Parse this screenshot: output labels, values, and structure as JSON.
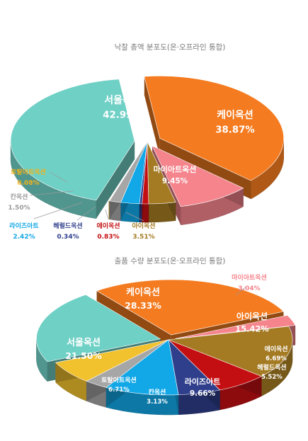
{
  "chart_data": [
    {
      "type": "pie",
      "title": "낙찰 총액 분포도(온·오프라인 통합)",
      "slices": [
        {
          "name": "서울옥션",
          "value": 42.99,
          "label": "42.99%",
          "color": "#6fd0c5"
        },
        {
          "name": "케이옥션",
          "value": 38.87,
          "label": "38.87%",
          "color": "#f47b20"
        },
        {
          "name": "마이아트옥션",
          "value": 9.45,
          "label": "9.45%",
          "color": "#f5848c"
        },
        {
          "name": "아이옥션",
          "value": 3.51,
          "label": "3.51%",
          "color": "#a47a23"
        },
        {
          "name": "에이옥션",
          "value": 0.83,
          "label": "0.83%",
          "color": "#c40f12"
        },
        {
          "name": "헤럴드옥션",
          "value": 0.34,
          "label": "0.34%",
          "color": "#2f3f8c"
        },
        {
          "name": "라이즈아트",
          "value": 2.42,
          "label": "2.42%",
          "color": "#12a7e6"
        },
        {
          "name": "칸옥션",
          "value": 1.5,
          "label": "1.50%",
          "color": "#a6a6a6"
        },
        {
          "name": "토탈아트옥션",
          "value": 0.08,
          "label": "0.08%",
          "color": "#f2c12e"
        }
      ]
    },
    {
      "type": "pie",
      "title": "출품 수량 분포도(온·오프라인 통합)",
      "slices": [
        {
          "name": "케이옥션",
          "value": 28.33,
          "label": "28.33%",
          "color": "#f47b20"
        },
        {
          "name": "마이아트옥션",
          "value": 3.04,
          "label": "3.04%",
          "color": "#f5848c"
        },
        {
          "name": "아이옥션",
          "value": 15.42,
          "label": "15.42%",
          "color": "#a47a23"
        },
        {
          "name": "에이옥션",
          "value": 6.69,
          "label": "6.69%",
          "color": "#c40f12"
        },
        {
          "name": "헤럴드옥션",
          "value": 5.52,
          "label": "5.52%",
          "color": "#2f3f8c"
        },
        {
          "name": "라이즈아트",
          "value": 9.66,
          "label": "9.66%",
          "color": "#12a7e6"
        },
        {
          "name": "칸옥션",
          "value": 3.13,
          "label": "3.13%",
          "color": "#a6a6a6"
        },
        {
          "name": "토탈아트옥션",
          "value": 6.71,
          "label": "6.71%",
          "color": "#f2c12e"
        },
        {
          "name": "서울옥션",
          "value": 21.5,
          "label": "21.50%",
          "color": "#6fd0c5"
        }
      ]
    }
  ]
}
